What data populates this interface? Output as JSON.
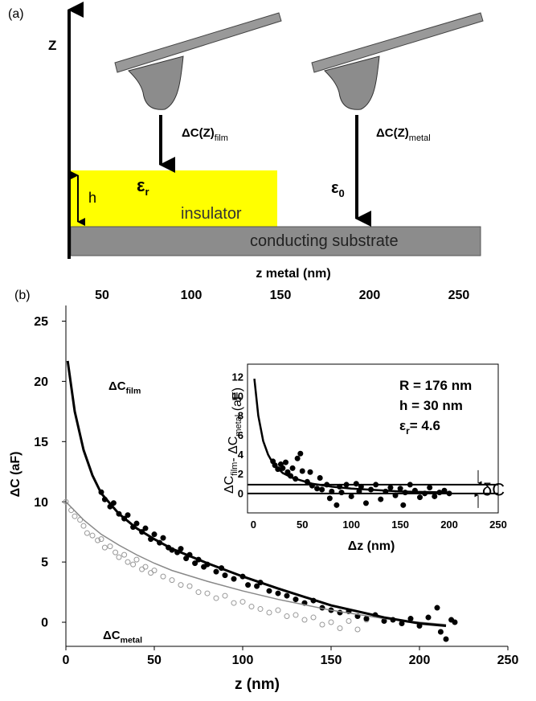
{
  "panel_a": {
    "label": "(a)",
    "z_axis": "Z",
    "film_arrow": {
      "text": "ΔC(Z)",
      "sub": "film"
    },
    "metal_arrow": {
      "text": "ΔC(Z)",
      "sub": "metal"
    },
    "h": "h",
    "eps_r": {
      "text": "ε",
      "sub": "r"
    },
    "insulator": "insulator",
    "eps_0": {
      "text": "ε",
      "sub": "0"
    },
    "substrate": "conducting substrate"
  },
  "panel_b_label": "(b)",
  "chart_data": [
    {
      "type": "scatter",
      "xlabel": "z  (nm)",
      "ylabel": "ΔC  (aF)",
      "x2label": "z metal   (nm)",
      "xlim": [
        0,
        250
      ],
      "xticks": [
        0,
        50,
        100,
        150,
        200,
        250
      ],
      "ylim": [
        -2,
        26.3
      ],
      "yticks": [
        0,
        5,
        10,
        15,
        20,
        25
      ],
      "x2lim": [
        29.7,
        277.5
      ],
      "x2ticks": [
        50,
        100,
        150,
        200,
        250
      ],
      "annotations": [
        {
          "text": "ΔC",
          "sub": "film"
        },
        {
          "text": "ΔC",
          "sub": "metal"
        }
      ],
      "series": [
        {
          "marker": "open",
          "color": "#999999",
          "x": [
            0,
            3,
            5,
            8,
            10,
            12,
            15,
            18,
            20,
            22,
            25,
            28,
            30,
            33,
            35,
            38,
            40,
            43,
            45,
            48,
            50,
            55,
            60,
            65,
            70,
            75,
            80,
            85,
            90,
            95,
            100,
            105,
            110,
            115,
            120,
            125,
            130,
            135,
            140,
            145,
            150,
            155,
            160,
            165,
            170
          ],
          "values": [
            10,
            9.3,
            8.8,
            8.5,
            8,
            7.4,
            7.2,
            6.8,
            6.9,
            6.2,
            6.3,
            5.8,
            5.4,
            5.6,
            5,
            4.8,
            5.2,
            4.4,
            4.6,
            4.1,
            4.3,
            3.8,
            3.5,
            3.1,
            3,
            2.5,
            2.4,
            2,
            2.2,
            1.6,
            1.7,
            1.3,
            1.1,
            0.8,
            1,
            0.5,
            0.6,
            0.2,
            0.4,
            -0.2,
            0,
            -0.5,
            0.1,
            -0.6,
            0.2
          ]
        },
        {
          "marker": "filled",
          "color": "#000000",
          "x": [
            20,
            22,
            25,
            27,
            30,
            33,
            35,
            38,
            40,
            43,
            45,
            48,
            50,
            53,
            55,
            58,
            60,
            63,
            65,
            68,
            70,
            73,
            75,
            78,
            80,
            85,
            88,
            90,
            95,
            100,
            103,
            108,
            110,
            115,
            120,
            125,
            130,
            135,
            140,
            145,
            150,
            155,
            160,
            165,
            170,
            175,
            180,
            185,
            190,
            195,
            200,
            205,
            210,
            212,
            215,
            218,
            220
          ],
          "values": [
            10.8,
            10.2,
            9.6,
            9.9,
            9,
            8.6,
            8.9,
            7.9,
            8.2,
            7.5,
            7.8,
            6.9,
            7.3,
            6.6,
            7,
            6.2,
            6,
            5.8,
            6.1,
            5.3,
            5.6,
            4.9,
            5.2,
            4.6,
            4.8,
            4.2,
            4.5,
            3.9,
            3.6,
            3.8,
            3.1,
            3,
            3.3,
            2.6,
            2.4,
            2.2,
            1.9,
            1.6,
            1.8,
            1.2,
            1,
            0.8,
            0.9,
            0.5,
            0.3,
            0.6,
            0.1,
            0.2,
            -0.1,
            0.3,
            -0.3,
            0.4,
            1.2,
            -0.8,
            -1.4,
            0.2,
            0
          ]
        },
        {
          "marker": "none",
          "line": true,
          "width": 1.5,
          "color": "#888888",
          "x": [
            0,
            10,
            20,
            30,
            40,
            50,
            60,
            80,
            100,
            120,
            150,
            180,
            200,
            215
          ],
          "values": [
            10,
            8.5,
            7.3,
            6.4,
            5.6,
            4.9,
            4.3,
            3.4,
            2.6,
            1.9,
            1,
            0.3,
            0,
            -0.2
          ]
        },
        {
          "marker": "none",
          "line": true,
          "width": 3,
          "color": "#000000",
          "x": [
            1,
            5,
            10,
            15,
            20,
            30,
            40,
            50,
            60,
            80,
            100,
            120,
            150,
            180,
            200,
            215
          ],
          "values": [
            21.7,
            17.5,
            14.3,
            12.2,
            10.7,
            9,
            7.8,
            6.9,
            6.1,
            4.9,
            3.8,
            2.8,
            1.4,
            0.4,
            -0.1,
            -0.3
          ]
        }
      ]
    },
    {
      "type": "scatter",
      "xlabel": "Δz   (nm)",
      "ylabel": [
        {
          "text": "ΔC",
          "sub": "film"
        },
        {
          "text": "- ΔC",
          "sub": "metal"
        },
        {
          "text": " (aF)"
        }
      ],
      "xlim": [
        -6,
        250
      ],
      "xticks": [
        0,
        50,
        100,
        150,
        200,
        250
      ],
      "ylim": [
        -2,
        13.3
      ],
      "yticks": [
        0,
        2,
        4,
        6,
        8,
        10,
        12
      ],
      "annotations": [
        "R = 176 nm",
        "h = 30 nm",
        {
          "text": "ε",
          "sub": "r",
          "tail": "= 4.6"
        }
      ],
      "hlines": [
        0,
        0.9
      ],
      "hline_label": "δC",
      "series": [
        {
          "marker": "filled",
          "color": "#000000",
          "x": [
            20,
            22,
            25,
            28,
            30,
            33,
            35,
            38,
            40,
            43,
            45,
            48,
            50,
            55,
            58,
            60,
            65,
            68,
            70,
            75,
            78,
            80,
            85,
            88,
            90,
            95,
            100,
            105,
            108,
            110,
            115,
            120,
            125,
            130,
            135,
            140,
            145,
            150,
            153,
            155,
            160,
            165,
            170,
            175,
            180,
            185,
            190,
            195,
            200
          ],
          "values": [
            3.3,
            2.9,
            2.5,
            3,
            2.6,
            3.2,
            2.2,
            1.8,
            2.6,
            1.5,
            3.6,
            4.1,
            2.3,
            1.2,
            2.2,
            0.8,
            0.5,
            1.6,
            0.4,
            0.9,
            -0.5,
            0.2,
            -1.2,
            0.7,
            0.1,
            0.9,
            -0.3,
            1,
            0.2,
            0.7,
            -1,
            0.4,
            0.9,
            -0.6,
            0.2,
            0.6,
            -0.2,
            0.5,
            -1.2,
            0.1,
            0.9,
            0.3,
            -0.4,
            0,
            0.6,
            -0.3,
            0.1,
            0.3,
            0
          ]
        },
        {
          "marker": "none",
          "line": true,
          "width": 2.5,
          "color": "#000000",
          "x": [
            1,
            5,
            10,
            15,
            20,
            30,
            40,
            60,
            80,
            100,
            150,
            200
          ],
          "values": [
            11.8,
            8,
            5.4,
            4,
            3.1,
            2.1,
            1.6,
            1,
            0.7,
            0.5,
            0.2,
            0.1
          ]
        }
      ]
    }
  ]
}
